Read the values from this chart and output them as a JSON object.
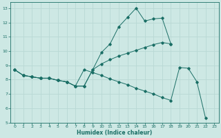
{
  "xlabel": "Humidex (Indice chaleur)",
  "bg_color": "#cde8e4",
  "grid_color": "#b8d8d4",
  "line_color": "#1a6e65",
  "xlim": [
    -0.5,
    23.5
  ],
  "ylim": [
    5,
    13.4
  ],
  "xticks": [
    0,
    1,
    2,
    3,
    4,
    5,
    6,
    7,
    8,
    9,
    10,
    11,
    12,
    13,
    14,
    15,
    16,
    17,
    18,
    19,
    20,
    21,
    22,
    23
  ],
  "yticks": [
    5,
    6,
    7,
    8,
    9,
    10,
    11,
    12,
    13
  ],
  "curve1_x": [
    0,
    1,
    2,
    3,
    4,
    5,
    6,
    7,
    8,
    9,
    10,
    11,
    12,
    13,
    14,
    15,
    16,
    17,
    18
  ],
  "curve1_y": [
    8.7,
    8.3,
    8.2,
    8.1,
    8.1,
    7.95,
    7.85,
    7.55,
    7.55,
    8.7,
    9.9,
    10.5,
    11.7,
    12.35,
    13.0,
    12.1,
    12.25,
    12.3,
    10.5
  ],
  "curve2_x": [
    0,
    1,
    2,
    3,
    4,
    5,
    6,
    7,
    8,
    9,
    10,
    11,
    12,
    13,
    14,
    15,
    16,
    17,
    18
  ],
  "curve2_y": [
    8.7,
    8.3,
    8.2,
    8.1,
    8.1,
    7.95,
    7.85,
    7.55,
    7.55,
    8.7,
    9.1,
    9.4,
    9.65,
    9.85,
    10.05,
    10.25,
    10.45,
    10.6,
    10.5
  ],
  "curve3_x": [
    0,
    1,
    2,
    3,
    4,
    5,
    6,
    7,
    8,
    9,
    10,
    11,
    12,
    13,
    14,
    15,
    16,
    17,
    18,
    19,
    20,
    21,
    22
  ],
  "curve3_y": [
    8.7,
    8.3,
    8.2,
    8.1,
    8.1,
    7.95,
    7.85,
    7.55,
    8.7,
    8.5,
    8.3,
    8.05,
    7.85,
    7.65,
    7.4,
    7.2,
    7.0,
    6.75,
    6.55,
    8.85,
    8.8,
    7.85,
    5.3
  ]
}
